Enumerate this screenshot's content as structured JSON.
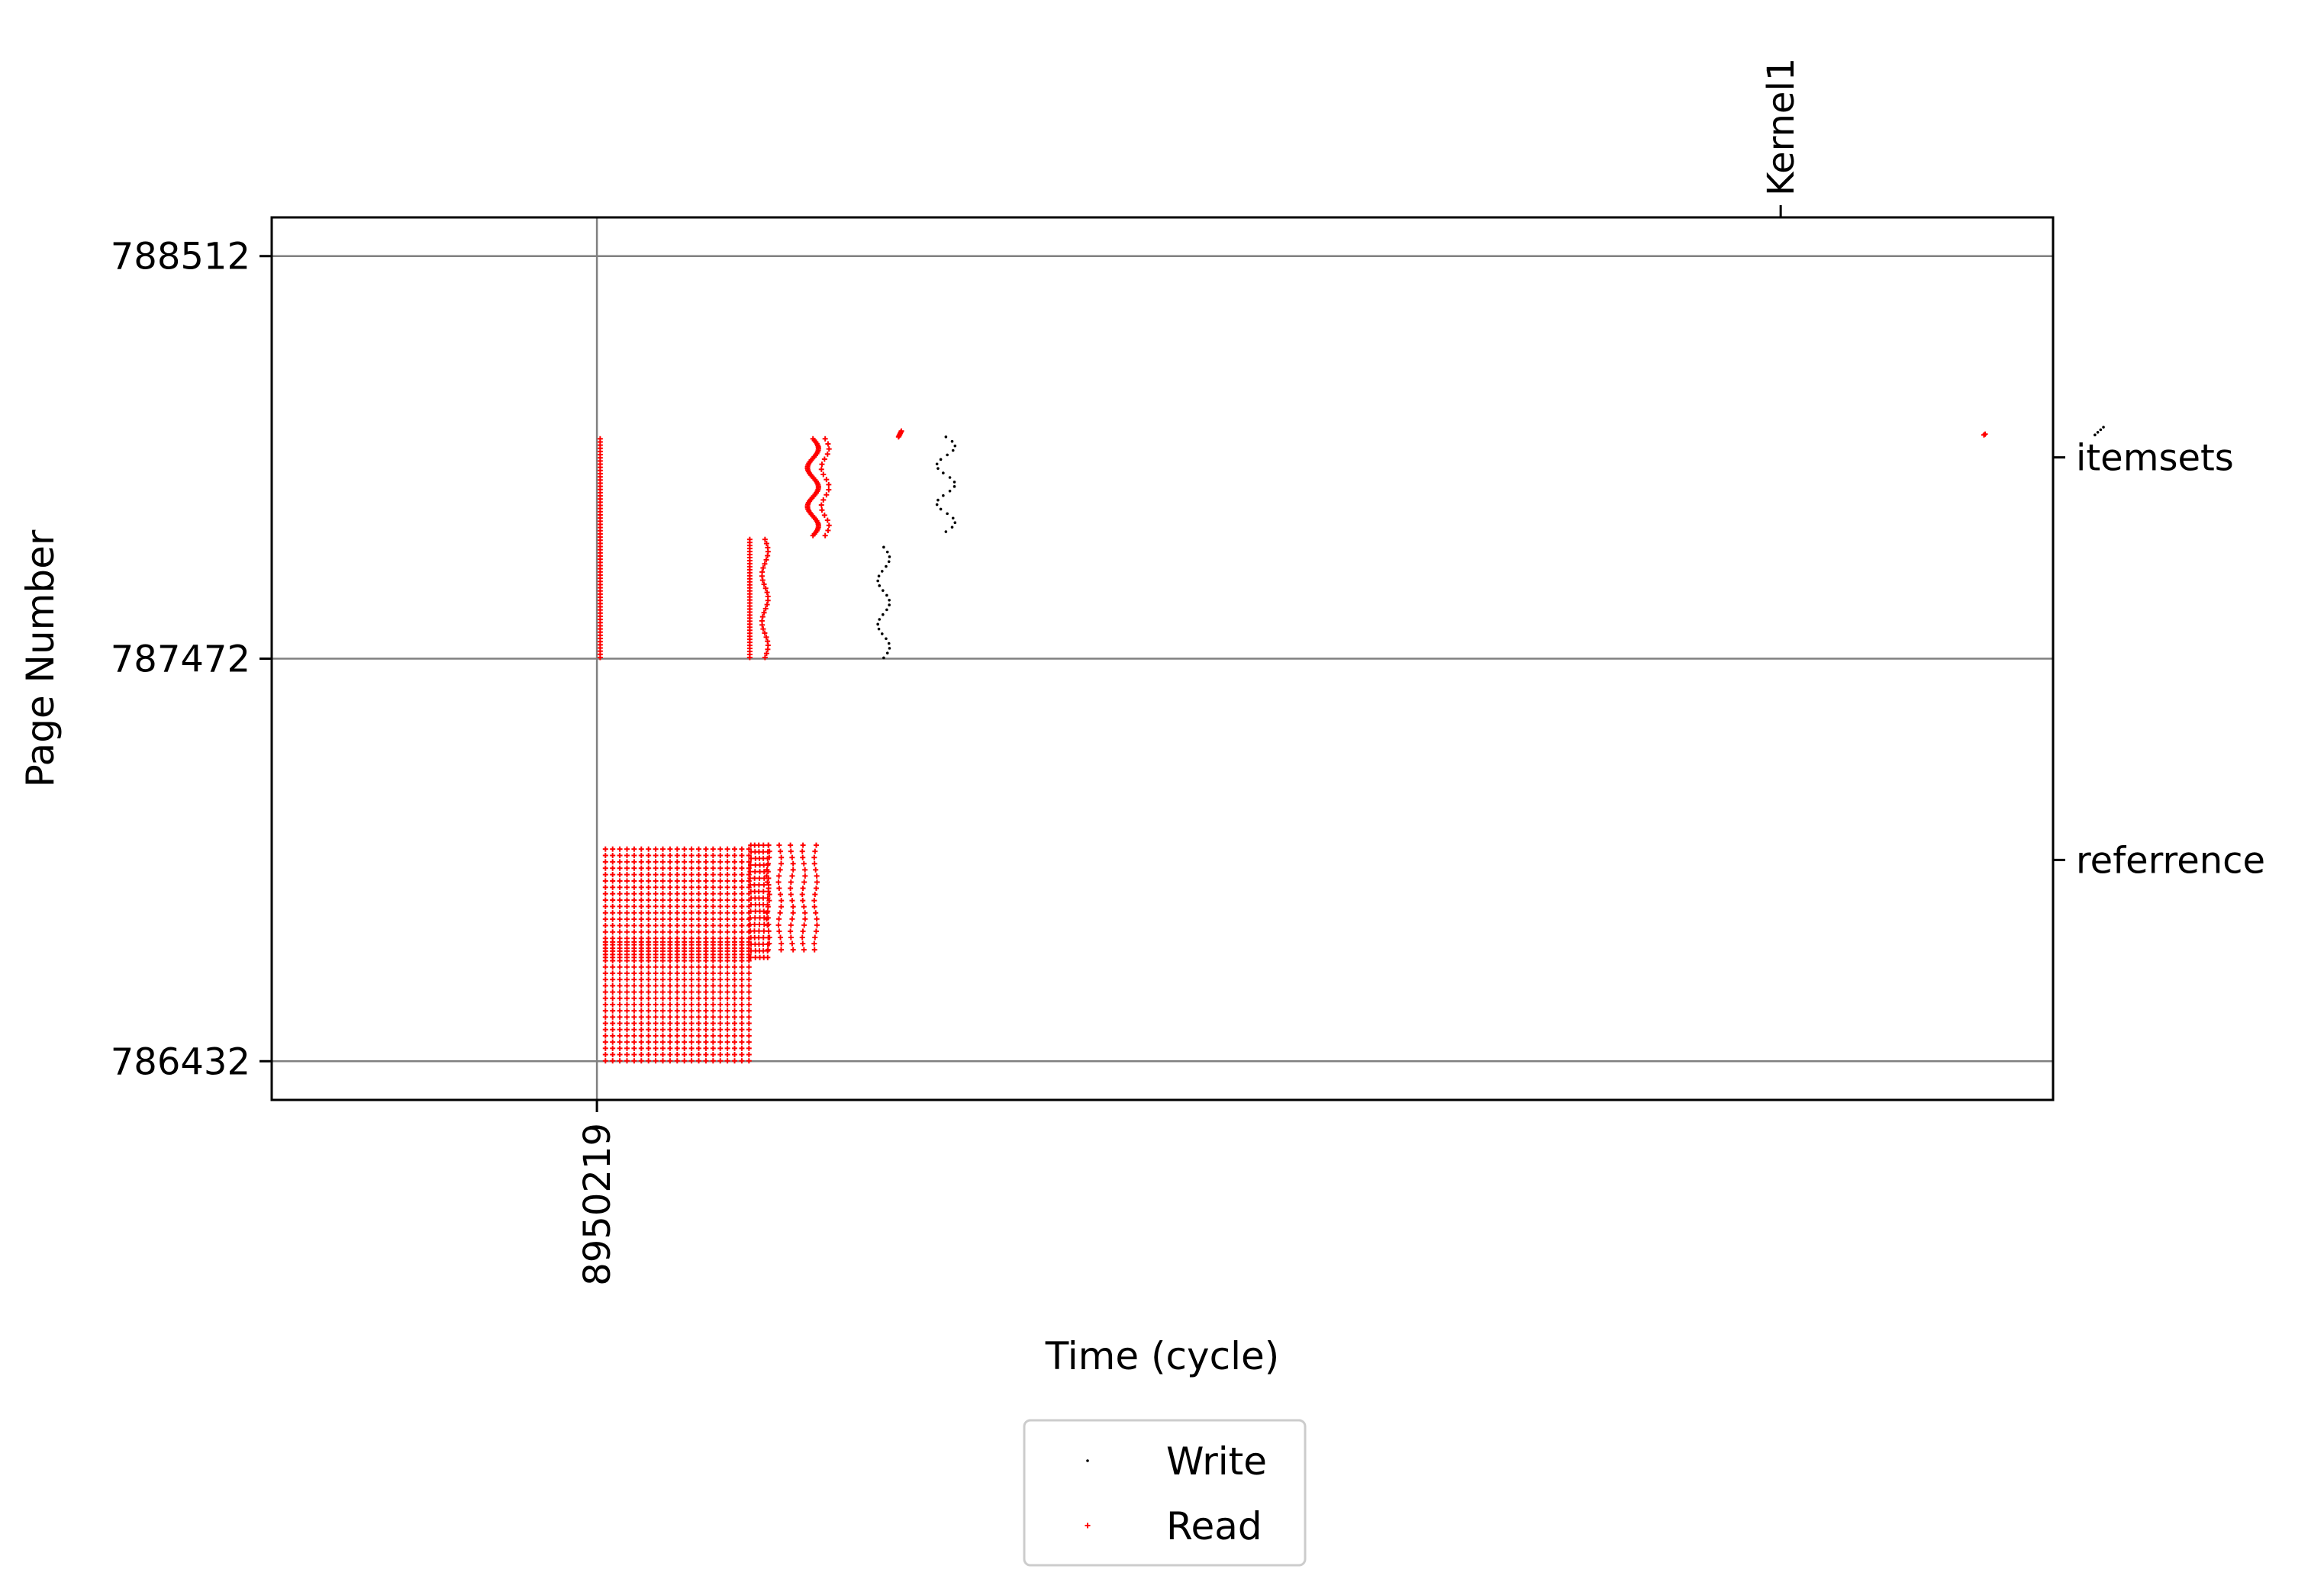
{
  "chart_data": {
    "type": "scatter",
    "title": "",
    "xlabel": "Time (cycle)",
    "ylabel": "Page Number",
    "x_ticks": [
      8950219
    ],
    "y_ticks": [
      786432,
      787472,
      788512
    ],
    "right_axis_labels": [
      {
        "label": "itemsets",
        "y": 787992
      },
      {
        "label": "referrence",
        "y": 786952
      }
    ],
    "top_axis_labels": [
      {
        "label": "Kernel1",
        "x": 8953131
      }
    ],
    "xlim": [
      8949419,
      8953801
    ],
    "ylim": [
      786332,
      788612
    ],
    "grid": true,
    "legend_position": "bottom-center",
    "series": [
      {
        "name": "Write",
        "color": "#000000",
        "marker": "dot",
        "clusters": [
          {
            "x": [
              8950910,
              8950939
            ],
            "y": [
              787474,
              787760
            ],
            "count": 24,
            "style": "wiggle"
          },
          {
            "x": [
              8951055,
              8951100
            ],
            "y": [
              787800,
              788045
            ],
            "count": 22,
            "style": "wiggle"
          },
          {
            "x": [
              8953904,
              8953925
            ],
            "y": [
              788050,
              788070
            ],
            "count": 4,
            "style": "line"
          }
        ]
      },
      {
        "name": "Read",
        "color": "#ff0000",
        "marker": "plus",
        "clusters": [
          {
            "x": [
              8950227,
              8950227
            ],
            "y": [
              787475,
              788040
            ],
            "count": 70,
            "style": "column"
          },
          {
            "x": [
              8950240,
              8950593
            ],
            "y": [
              786433,
              786740
            ],
            "count": 420,
            "style": "grid",
            "cols": 21
          },
          {
            "x": [
              8950240,
              8950593
            ],
            "y": [
              786700,
              786980
            ],
            "count": 380,
            "style": "grid",
            "cols": 21
          },
          {
            "x": [
              8950597,
              8950640
            ],
            "y": [
              786700,
              786990
            ],
            "count": 90,
            "style": "wiggle-grid",
            "cols": 5
          },
          {
            "x": [
              8950640,
              8950757
            ],
            "y": [
              786720,
              786990
            ],
            "count": 90,
            "style": "wiggle-grid",
            "cols": 5
          },
          {
            "x": [
              8950593,
              8950597
            ],
            "y": [
              787475,
              787780
            ],
            "count": 40,
            "style": "column"
          },
          {
            "x": [
              8950625,
              8950640
            ],
            "y": [
              787475,
              787780
            ],
            "count": 30,
            "style": "wiggle"
          },
          {
            "x": [
              8950737,
              8950764
            ],
            "y": [
              787790,
              788040
            ],
            "count": 60,
            "style": "wiggle"
          },
          {
            "x": [
              8950771,
              8950790
            ],
            "y": [
              787790,
              788040
            ],
            "count": 20,
            "style": "wiggle"
          },
          {
            "x": [
              8950961,
              8950968
            ],
            "y": [
              788045,
              788060
            ],
            "count": 6,
            "style": "line"
          },
          {
            "x": [
              8953631,
              8953634
            ],
            "y": [
              788050,
              788052
            ],
            "count": 2,
            "style": "line"
          }
        ]
      }
    ]
  }
}
